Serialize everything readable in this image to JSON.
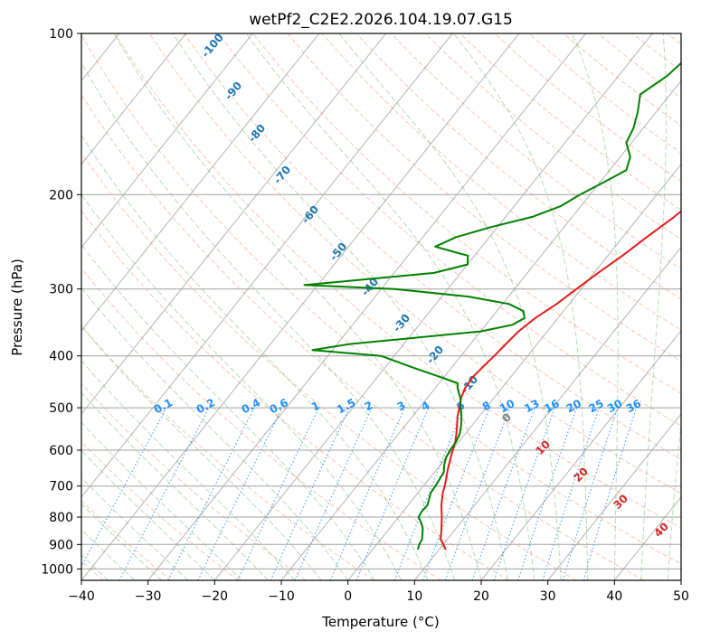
{
  "chart_data": {
    "type": "line",
    "title": "wetPf2_C2E2.2026.104.19.07.G15",
    "xlabel": "Temperature (°C)",
    "ylabel": "Pressure (hPa)",
    "xlim": [
      -40,
      50
    ],
    "ylim": [
      1050,
      100
    ],
    "y_scale": "log",
    "grid": true,
    "x_ticks": [
      -40,
      -30,
      -20,
      -10,
      0,
      10,
      20,
      30,
      40,
      50
    ],
    "x_tick_labels": [
      "−40",
      "−30",
      "−20",
      "−10",
      "0",
      "10",
      "20",
      "30",
      "40",
      "50"
    ],
    "y_ticks": [
      100,
      200,
      300,
      400,
      500,
      600,
      700,
      800,
      900,
      1000
    ],
    "y_tick_labels": [
      "100",
      "200",
      "300",
      "400",
      "500",
      "600",
      "700",
      "800",
      "900",
      "1000"
    ],
    "series": [
      {
        "color": "#e41a1c",
        "p": [
          920,
          880,
          840,
          800,
          760,
          720,
          700,
          680,
          650,
          620,
          600,
          580,
          560,
          540,
          520,
          500,
          480,
          460,
          440,
          420,
          400,
          380,
          360,
          340,
          320,
          300,
          280,
          260,
          240,
          220,
          200,
          180,
          160,
          150,
          140,
          130,
          120,
          110,
          100
        ],
        "values": [
          11,
          9,
          7.8,
          6.5,
          5,
          3.7,
          3.2,
          2.6,
          1.6,
          0.7,
          0.1,
          -0.5,
          -1.3,
          -2.2,
          -3.2,
          -4,
          -4.9,
          -5.5,
          -5.7,
          -5.4,
          -5,
          -4.7,
          -4.3,
          -3.4,
          -1.9,
          -0.7,
          0.6,
          2.2,
          3.6,
          5.3,
          6.6,
          8.5,
          11.4,
          13.6,
          15.4,
          17.1,
          17.7,
          19.1,
          22.2
        ]
      },
      {
        "color": "#008000",
        "p": [
          920,
          900,
          880,
          860,
          840,
          820,
          800,
          780,
          760,
          740,
          720,
          700,
          680,
          660,
          640,
          620,
          600,
          580,
          560,
          540,
          520,
          500,
          480,
          460,
          450,
          440,
          420,
          400,
          390,
          380,
          370,
          360,
          350,
          340,
          330,
          320,
          310,
          300,
          295,
          290,
          280,
          270,
          260,
          255,
          250,
          240,
          230,
          220,
          210,
          200,
          190,
          180,
          170,
          160,
          150,
          140,
          130,
          120,
          110,
          100
        ],
        "values": [
          6.8,
          6.4,
          6.2,
          5.6,
          5,
          4.1,
          3,
          2.8,
          2.9,
          2.4,
          1.9,
          1.8,
          1.6,
          1.4,
          0.6,
          0,
          -0.3,
          -0.4,
          -0.8,
          -1.6,
          -2.6,
          -3.8,
          -5,
          -6.6,
          -7.2,
          -10,
          -16,
          -22,
          -33,
          -28,
          -19,
          -10,
          -6,
          -5,
          -6,
          -9,
          -16,
          -28,
          -42,
          -36,
          -24,
          -20,
          -21,
          -24,
          -27,
          -25,
          -21,
          -16,
          -13,
          -11.5,
          -9.5,
          -7.5,
          -8.5,
          -10.8,
          -11.5,
          -12.8,
          -14.5,
          -12.7,
          -11.8,
          -11
        ]
      }
    ],
    "dry_adiabat_labels": [
      "-100",
      "-90",
      "-80",
      "-70",
      "-60",
      "-50",
      "-40",
      "-30",
      "-20",
      "-10"
    ],
    "moist_adiabat_labels": [
      "0",
      "10",
      "20",
      "30",
      "40"
    ],
    "mixing_ratio_labels": [
      "0.1",
      "0.2",
      "0.4",
      "0.6",
      "1",
      "1.5",
      "2",
      "3",
      "4",
      "6",
      "8",
      "10",
      "13",
      "16",
      "20",
      "25",
      "30",
      "36"
    ],
    "colors": {
      "temperature": "#e41a1c",
      "dewpoint": "#008000",
      "isotherm": "#7f7f7f",
      "dry_adiabat": "#ff7f50",
      "moist_adiabat": "#2ca02c",
      "mixing_ratio": "#1e90ff",
      "dry_label": "#1f77b4",
      "moist_label_cold": "#808080",
      "moist_label_warm": "#d62728",
      "lcl_line": "#d2b48c"
    }
  }
}
